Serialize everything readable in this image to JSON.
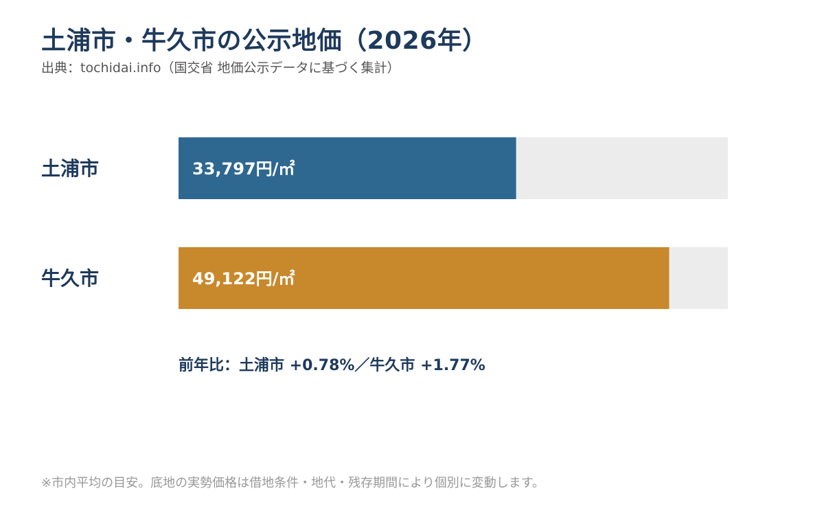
{
  "title": "土浦市・牛久市の公示地価（2026年）",
  "source": "出典：tochidai.info（国交省 地価公示データに基づく集計）",
  "colors": {
    "bar_tsuchiura": "#2e6891",
    "bar_ushiku": "#c8892c",
    "track": "#ececec",
    "label": "#1e3a5c"
  },
  "chart_data": {
    "type": "bar",
    "orientation": "horizontal",
    "categories": [
      "土浦市",
      "牛久市"
    ],
    "values": [
      33797,
      49122
    ],
    "value_labels": [
      "33,797円/㎡",
      "49,122円/㎡"
    ],
    "unit": "円/㎡",
    "xlim": [
      0,
      55000
    ],
    "grid": false,
    "legend": "none"
  },
  "yoy_note": "前年比：土浦市 +0.78%／牛久市 +1.77%",
  "footnote": "※市内平均の目安。底地の実勢価格は借地条件・地代・残存期間により個別に変動します。"
}
